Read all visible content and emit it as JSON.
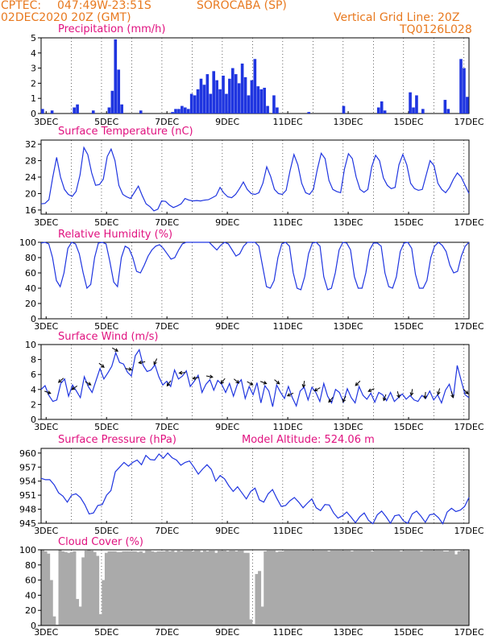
{
  "header": {
    "source": "CPTEC:",
    "coords": "047:49W-23:51S",
    "location": "SOROCABA (SP)",
    "run": "02DEC2020 20Z (GMT)",
    "grid_note": "Vertical Grid Line: 20Z",
    "code": "TQ0126L028"
  },
  "colors": {
    "header": "#e8791f",
    "panel_title": "#e0117f",
    "line": "#1f35e0",
    "cloud": "#aaaaaa",
    "axis": "#000000"
  },
  "x_axis": {
    "start": "02DEC2020 20Z",
    "end": "17DEC2020",
    "tick_labels": [
      "3DEC",
      "5DEC",
      "7DEC",
      "9DEC",
      "11DEC",
      "13DEC",
      "15DEC",
      "17DEC"
    ]
  },
  "chart_data": [
    {
      "type": "bar",
      "title": "Precipitation (mm/h)",
      "ylim": [
        0,
        5
      ],
      "yticks": [
        0,
        1,
        2,
        3,
        4,
        5
      ],
      "series": [
        {
          "values_mm_h_at_each_3h_step_from_02DEC_20Z": [
            0.3,
            0,
            0,
            0.2,
            0,
            0,
            0,
            0,
            0,
            0,
            0.4,
            0.6,
            0,
            0,
            0,
            0,
            0.2,
            0,
            0,
            0,
            0,
            0.4,
            1.5,
            4.9,
            2.9,
            0.6,
            0,
            0,
            0,
            0,
            0,
            0.2,
            0,
            0,
            0,
            0,
            0,
            0,
            0,
            0,
            0,
            0.1,
            0.3,
            0.3,
            0.5,
            0.4,
            0.3,
            1.3,
            1.2,
            1.6,
            2.3,
            1.9,
            2.6,
            1.3,
            2.8,
            2.2,
            1.6,
            2.5,
            1.3,
            2.3,
            3.0,
            2.6,
            2.0,
            3.3,
            2.4,
            1.2,
            2.2,
            3.6,
            1.8,
            1.6,
            1.7,
            0.5,
            0,
            1.2,
            0.4,
            0,
            0,
            0,
            0,
            0,
            0,
            0,
            0,
            0,
            0.1,
            0,
            0,
            0,
            0,
            0,
            0,
            0,
            0,
            0,
            0,
            0.5,
            0,
            0,
            0,
            0,
            0,
            0,
            0,
            0,
            0,
            0,
            0.4,
            0.8,
            0.2,
            0,
            0,
            0,
            0,
            0,
            0,
            0,
            1.4,
            0.4,
            1.2,
            0,
            0.3,
            0,
            0,
            0,
            0,
            0,
            0,
            0.9,
            0.3,
            0,
            0,
            0,
            3.6,
            3.0,
            1.1
          ]
        }
      ]
    },
    {
      "type": "line",
      "title": "Surface Temperature (nC)",
      "ylim": [
        15,
        33
      ],
      "yticks": [
        16,
        20,
        24,
        28,
        32
      ],
      "series": [
        {
          "name": "temperature",
          "values": [
            17.5,
            17.6,
            18.5,
            24.0,
            28.8,
            24.0,
            21.0,
            19.8,
            19.3,
            20.5,
            24.5,
            31.2,
            29.5,
            25.0,
            22.0,
            22.2,
            23.5,
            29.0,
            30.8,
            28.0,
            22.0,
            19.8,
            19.2,
            18.8,
            20.3,
            21.8,
            19.5,
            17.5,
            16.8,
            15.8,
            16.2,
            18.2,
            18.1,
            17.2,
            16.6,
            17.0,
            17.5,
            18.8,
            18.4,
            18.2,
            18.3,
            18.2,
            18.4,
            18.5,
            19.0,
            19.5,
            21.5,
            20.1,
            19.2,
            19.0,
            19.8,
            21.2,
            22.8,
            21.0,
            20.0,
            19.8,
            20.2,
            22.5,
            26.5,
            24.2,
            21.0,
            20.0,
            19.8,
            20.8,
            25.5,
            29.5,
            27.0,
            22.5,
            20.2,
            19.8,
            21.0,
            25.8,
            29.8,
            28.5,
            23.2,
            21.0,
            20.5,
            20.2,
            26.0,
            29.7,
            28.5,
            24.0,
            21.0,
            20.3,
            21.0,
            26.5,
            29.3,
            28.0,
            23.8,
            22.0,
            21.2,
            21.5,
            27.0,
            29.5,
            27.0,
            22.5,
            21.2,
            20.8,
            21.0,
            24.5,
            28.0,
            26.8,
            22.5,
            21.0,
            20.2,
            21.5,
            23.5,
            25.0,
            24.0,
            22.0,
            20.0
          ]
        }
      ]
    },
    {
      "type": "line",
      "title": "Relative Humidity (%)",
      "ylim": [
        0,
        100
      ],
      "yticks": [
        0,
        20,
        40,
        60,
        80,
        100
      ],
      "series": [
        {
          "name": "relative humidity",
          "values": [
            99,
            100,
            98,
            80,
            50,
            42,
            60,
            92,
            100,
            98,
            85,
            60,
            40,
            45,
            80,
            99,
            100,
            98,
            75,
            48,
            42,
            80,
            95,
            92,
            80,
            62,
            60,
            70,
            82,
            90,
            95,
            97,
            92,
            85,
            78,
            80,
            90,
            98,
            100,
            100,
            100,
            100,
            100,
            100,
            100,
            95,
            90,
            96,
            100,
            98,
            90,
            82,
            85,
            95,
            100,
            100,
            100,
            95,
            68,
            42,
            40,
            50,
            80,
            98,
            100,
            95,
            60,
            40,
            38,
            55,
            85,
            99,
            100,
            95,
            55,
            38,
            40,
            60,
            90,
            100,
            99,
            90,
            55,
            40,
            40,
            60,
            90,
            99,
            99,
            95,
            60,
            42,
            40,
            55,
            88,
            99,
            100,
            92,
            58,
            40,
            40,
            50,
            80,
            95,
            100,
            96,
            88,
            70,
            60,
            62,
            82,
            95,
            100
          ]
        }
      ]
    },
    {
      "type": "line",
      "title": "Surface Wind (m/s)",
      "ylim": [
        0,
        10
      ],
      "yticks": [
        0,
        2,
        4,
        6,
        8,
        10
      ],
      "series": [
        {
          "name": "wind speed",
          "values": [
            4.0,
            4.5,
            3.2,
            2.4,
            2.6,
            4.8,
            5.4,
            3.1,
            4.6,
            3.8,
            2.9,
            5.7,
            4.4,
            3.6,
            5.2,
            6.8,
            5.4,
            6.2,
            7.1,
            8.9,
            7.6,
            7.4,
            6.3,
            5.8,
            8.5,
            9.3,
            7.2,
            6.4,
            6.6,
            7.3,
            5.7,
            4.6,
            5.1,
            4.4,
            6.6,
            5.4,
            5.8,
            6.5,
            4.4,
            5.1,
            5.9,
            3.6,
            4.7,
            5.3,
            3.9,
            5.2,
            4.7,
            3.6,
            4.8,
            3.1,
            4.7,
            5.3,
            2.8,
            4.4,
            3.3,
            4.9,
            2.2,
            4.5,
            3.8,
            1.7,
            4.6,
            3.6,
            2.8,
            4.4,
            2.9,
            1.8,
            3.8,
            4.3,
            2.6,
            4.3,
            3.6,
            2.4,
            4.8,
            3.1,
            2.2,
            4.0,
            3.6,
            2.3,
            4.1,
            2.9,
            2.2,
            4.4,
            3.2,
            2.7,
            3.5,
            2.3,
            3.6,
            3.3,
            2.5,
            3.6,
            2.4,
            2.9,
            3.4,
            2.7,
            3.2,
            2.6,
            2.4,
            3.2,
            2.8,
            3.8,
            2.6,
            3.3,
            2.2,
            3.9,
            4.7,
            2.9,
            7.2,
            5.2,
            3.3,
            2.9
          ]
        }
      ],
      "arrows_to_direction_deg": [
        -20,
        -140,
        -145,
        -30,
        -40,
        -30,
        -10,
        -170,
        -115,
        -125,
        -175,
        -170,
        -10,
        -130,
        -40,
        -30,
        -20,
        -40,
        -155,
        -100,
        -150,
        -130,
        -115,
        -135,
        -155,
        -110,
        -75,
        -100,
        -95,
        -105,
        -75,
        -45
      ]
    },
    {
      "type": "line",
      "title": "Surface Pressure (hPa)",
      "annotation": "Model Altitude: 524.06 m",
      "ylim": [
        945,
        961
      ],
      "yticks": [
        945,
        948,
        951,
        954,
        957,
        960
      ],
      "series": [
        {
          "name": "surface pressure",
          "values": [
            954.6,
            954.3,
            954.3,
            953.2,
            951.5,
            950.8,
            949.5,
            951.0,
            951.3,
            950.5,
            949.0,
            947.0,
            947.2,
            948.8,
            949.0,
            951.0,
            952.0,
            956.0,
            957.0,
            958.0,
            957.2,
            958.0,
            958.5,
            957.5,
            959.5,
            958.6,
            958.5,
            959.8,
            958.9,
            960.0,
            959.0,
            958.5,
            957.4,
            958.0,
            958.3,
            957.0,
            955.5,
            956.6,
            957.5,
            956.5,
            954.0,
            955.2,
            954.5,
            953.0,
            951.8,
            952.8,
            951.5,
            950.2,
            951.8,
            952.5,
            950.0,
            949.5,
            951.3,
            952.2,
            950.3,
            948.6,
            948.8,
            949.8,
            950.5,
            949.5,
            948.3,
            949.3,
            950.2,
            948.3,
            947.7,
            949.0,
            948.9,
            947.2,
            946.1,
            946.6,
            947.4,
            946.3,
            945.1,
            946.4,
            947.2,
            945.6,
            944.9,
            946.8,
            947.6,
            946.4,
            945.0,
            946.6,
            946.8,
            945.5,
            945.0,
            947.0,
            947.6,
            946.5,
            945.2,
            946.8,
            947.0,
            946.2,
            944.9,
            947.4,
            948.2,
            947.5,
            947.8,
            948.6,
            950.5
          ]
        }
      ]
    },
    {
      "type": "area",
      "title": "Cloud Cover (%)",
      "ylim": [
        0,
        100
      ],
      "yticks": [
        0,
        20,
        40,
        60,
        80,
        100
      ],
      "series": [
        {
          "name": "cloud cover",
          "values": [
            100,
            98,
            95,
            60,
            12,
            1,
            100,
            98,
            97,
            96,
            97,
            98,
            35,
            25,
            90,
            99,
            100,
            99,
            97,
            92,
            15,
            60,
            96,
            98,
            98,
            98,
            97,
            97,
            98,
            98,
            98,
            98,
            98,
            97,
            98,
            96,
            99,
            99,
            98,
            97,
            98,
            98,
            98,
            99,
            98,
            99,
            97,
            99,
            98,
            99,
            99,
            99,
            98,
            99,
            99,
            97,
            99,
            98,
            99,
            99,
            96,
            99,
            99,
            99,
            98,
            99,
            99,
            98,
            99,
            99,
            96,
            96,
            8,
            2,
            68,
            72,
            25,
            98,
            99,
            99,
            99,
            97,
            98,
            98,
            99,
            99,
            99,
            99,
            99,
            99,
            99,
            99,
            99,
            99,
            99,
            99,
            99,
            99,
            99,
            98,
            99,
            99,
            99,
            99,
            99,
            99,
            99,
            98,
            99,
            99,
            99,
            99,
            99,
            99,
            98,
            99,
            99,
            99,
            99,
            99,
            99,
            99,
            99,
            99,
            98,
            99,
            99,
            99,
            99,
            99,
            99,
            98,
            99,
            99,
            99,
            99,
            99,
            99,
            99,
            98,
            98,
            99,
            99,
            94,
            98,
            99,
            99,
            99
          ]
        }
      ]
    }
  ]
}
